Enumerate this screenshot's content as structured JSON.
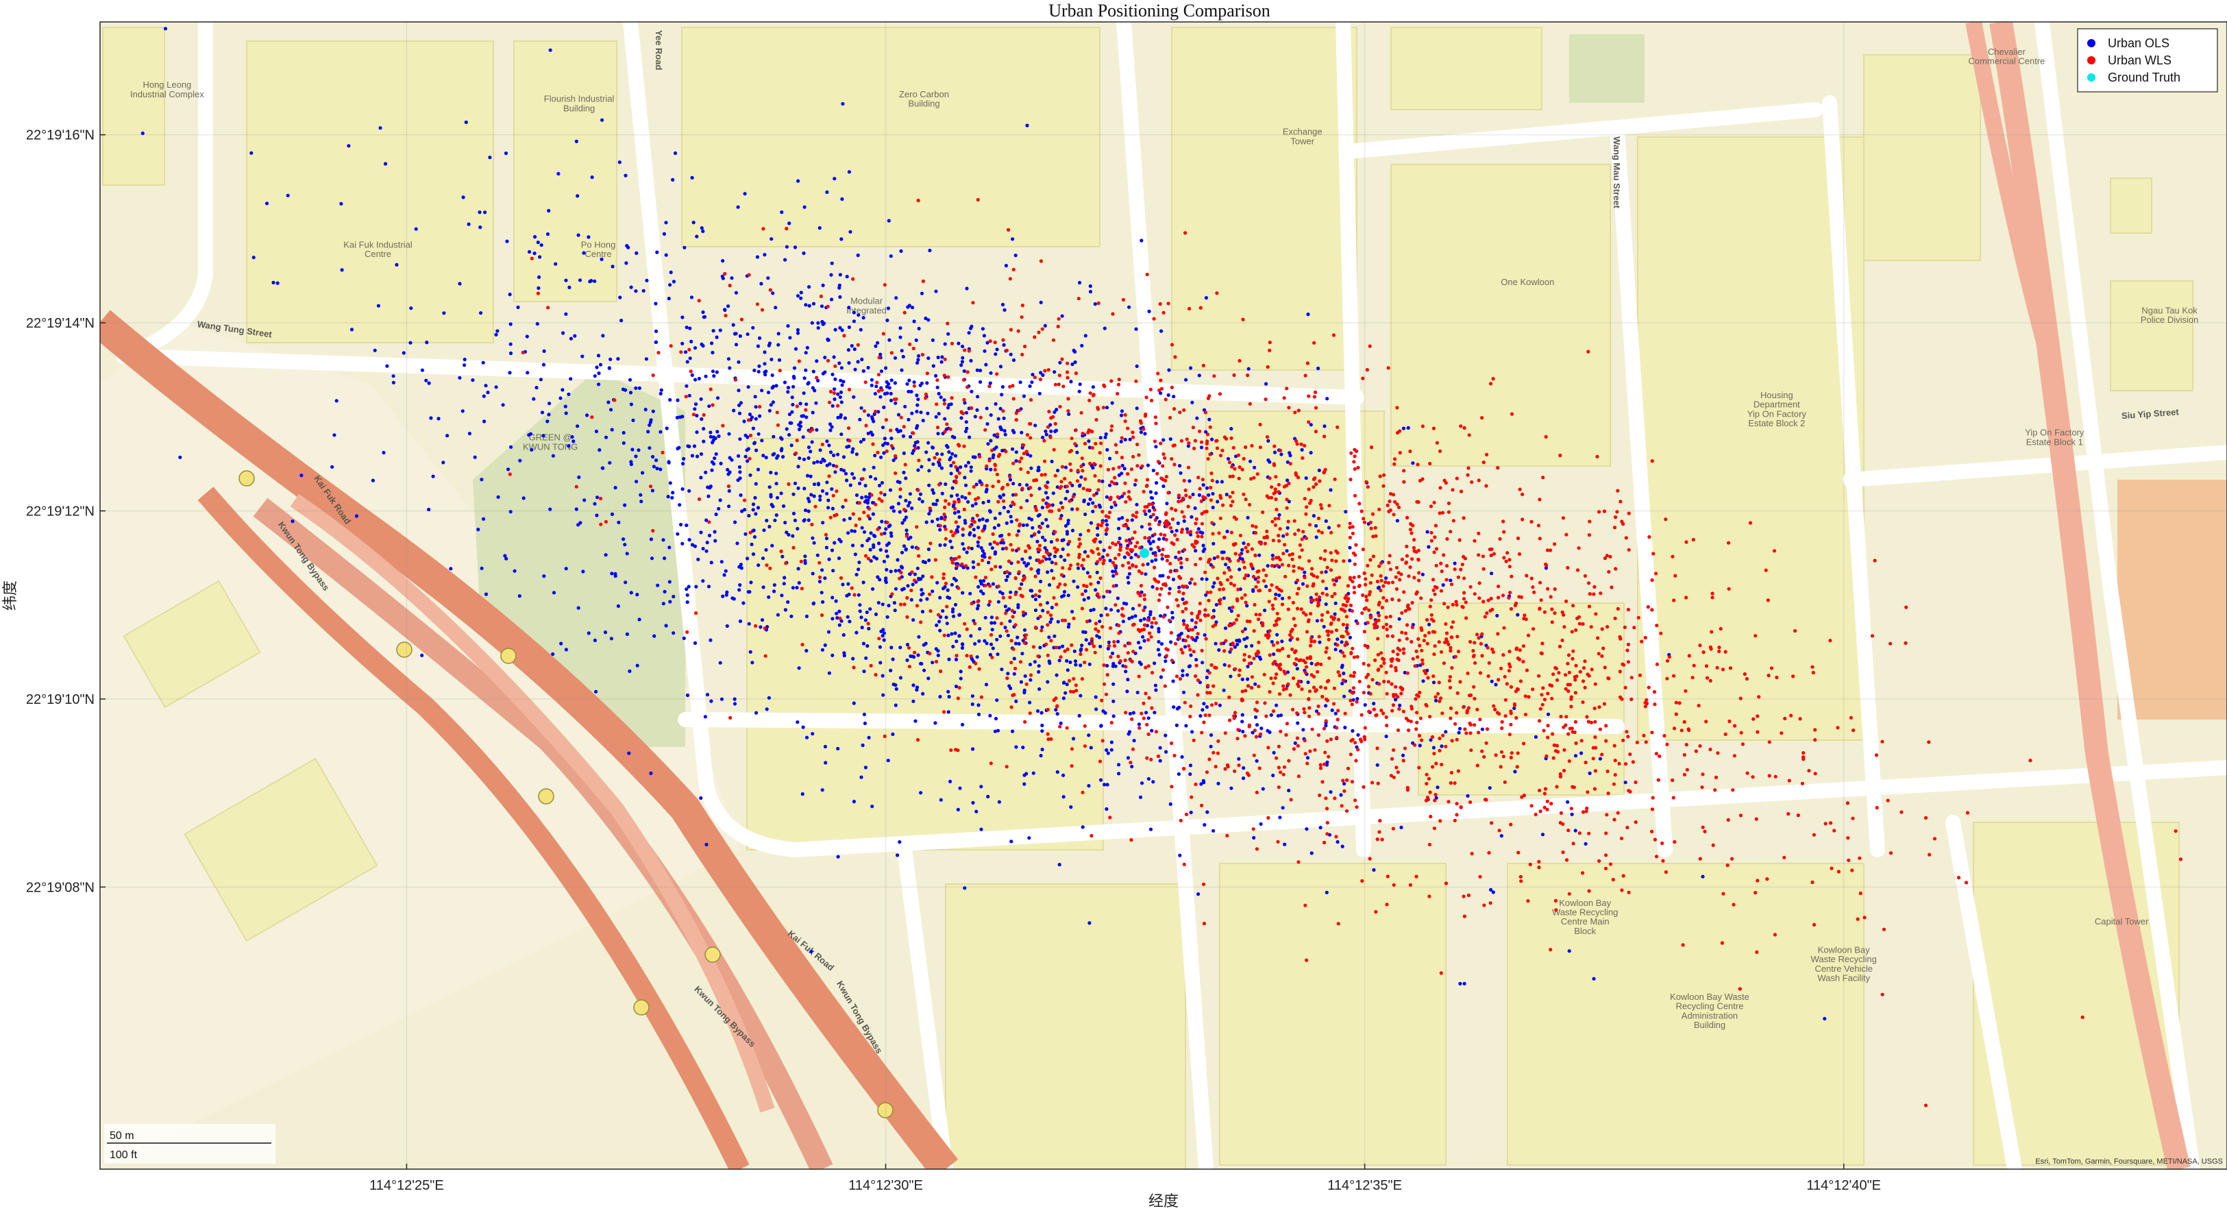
{
  "chart_data": {
    "type": "scatter",
    "title": "Urban Positioning Comparison",
    "xlabel": "经度",
    "ylabel": "纬度",
    "xlim_arcsec": [
      21.8,
      44.0
    ],
    "ylim_arcsec": [
      5.0,
      17.2
    ],
    "x_ticks": [
      {
        "v": 25,
        "label": "114°12'25\"E"
      },
      {
        "v": 30,
        "label": "114°12'30\"E"
      },
      {
        "v": 35,
        "label": "114°12'35\"E"
      },
      {
        "v": 40,
        "label": "114°12'40\"E"
      }
    ],
    "y_ticks": [
      {
        "v": 8,
        "label": "22°19'08\"N"
      },
      {
        "v": 10,
        "label": "22°19'10\"N"
      },
      {
        "v": 12,
        "label": "22°19'12\"N"
      },
      {
        "v": 14,
        "label": "22°19'14\"N"
      },
      {
        "v": 16,
        "label": "22°19'16\"N"
      }
    ],
    "grid": true,
    "legend_position": "top-right",
    "basemap": "street map",
    "series": [
      {
        "name": "Urban OLS",
        "color": "#0000ff",
        "center": [
          30.6,
          11.9
        ],
        "spread": [
          2.4,
          1.25
        ],
        "tilt": -0.32,
        "count": 2600,
        "sample_points": [
          [
            26.5,
            16.9
          ],
          [
            27.9,
            14.8
          ],
          [
            29.5,
            12.6
          ],
          [
            30.9,
            11.6
          ],
          [
            33.1,
            10.3
          ],
          [
            35.4,
            9.4
          ],
          [
            37.2,
            8.6
          ],
          [
            39.8,
            6.6
          ]
        ]
      },
      {
        "name": "Urban WLS",
        "color": "#ff0000",
        "center": [
          34.2,
          11.0
        ],
        "spread": [
          2.6,
          1.1
        ],
        "tilt": -0.3,
        "count": 2800,
        "sample_points": [
          [
            31.7,
            13.5
          ],
          [
            33.4,
            12.4
          ],
          [
            34.4,
            11.2
          ],
          [
            35.8,
            10.5
          ],
          [
            37.4,
            9.9
          ],
          [
            38.5,
            9.5
          ],
          [
            39.9,
            8.6
          ],
          [
            41.2,
            8.1
          ]
        ]
      },
      {
        "name": "Ground Truth",
        "color": "#00e5ee",
        "x": 32.7,
        "y": 11.55
      }
    ]
  },
  "map_labels": {
    "buildings": [
      {
        "t": "Hong Leong",
        "x": 22.5,
        "y": 16.5
      },
      {
        "t": "Industrial Complex",
        "x": 22.5,
        "y": 16.4
      },
      {
        "t": "Flourish Industrial",
        "x": 26.8,
        "y": 16.35
      },
      {
        "t": "Building",
        "x": 26.8,
        "y": 16.25
      },
      {
        "t": "Zero Carbon",
        "x": 30.4,
        "y": 16.4
      },
      {
        "t": "Building",
        "x": 30.4,
        "y": 16.3
      },
      {
        "t": "Exchange",
        "x": 34.35,
        "y": 16.0
      },
      {
        "t": "Tower",
        "x": 34.35,
        "y": 15.9
      },
      {
        "t": "Chevalier",
        "x": 41.7,
        "y": 16.85
      },
      {
        "t": "Commercial Centre",
        "x": 41.7,
        "y": 16.75
      },
      {
        "t": "Kai Fuk Industrial",
        "x": 24.7,
        "y": 14.8
      },
      {
        "t": "Centre",
        "x": 24.7,
        "y": 14.7
      },
      {
        "t": "Po Hong",
        "x": 27.0,
        "y": 14.8
      },
      {
        "t": "Centre",
        "x": 27.0,
        "y": 14.7
      },
      {
        "t": "Modular",
        "x": 29.8,
        "y": 14.2
      },
      {
        "t": "Integrated",
        "x": 29.8,
        "y": 14.1
      },
      {
        "t": "One Kowloon",
        "x": 36.7,
        "y": 14.4
      },
      {
        "t": "Ngau Tau Kok",
        "x": 43.4,
        "y": 14.1
      },
      {
        "t": "Police Division",
        "x": 43.4,
        "y": 14.0
      },
      {
        "t": "Housing",
        "x": 39.3,
        "y": 13.2
      },
      {
        "t": "Department",
        "x": 39.3,
        "y": 13.1
      },
      {
        "t": "Yip On Factory",
        "x": 39.3,
        "y": 13.0
      },
      {
        "t": "Estate Block 2",
        "x": 39.3,
        "y": 12.9
      },
      {
        "t": "Yip On Factory",
        "x": 42.2,
        "y": 12.8
      },
      {
        "t": "Estate Block 1",
        "x": 42.2,
        "y": 12.7
      },
      {
        "t": "GREEN @",
        "x": 26.5,
        "y": 12.75
      },
      {
        "t": "KWUN TONG",
        "x": 26.5,
        "y": 12.65
      },
      {
        "t": "Kowloon Bay",
        "x": 37.3,
        "y": 7.8
      },
      {
        "t": "Waste Recycling",
        "x": 37.3,
        "y": 7.7
      },
      {
        "t": "Centre Main",
        "x": 37.3,
        "y": 7.6
      },
      {
        "t": "Block",
        "x": 37.3,
        "y": 7.5
      },
      {
        "t": "Kowloon Bay",
        "x": 40.0,
        "y": 7.3
      },
      {
        "t": "Waste Recycling",
        "x": 40.0,
        "y": 7.2
      },
      {
        "t": "Centre Vehicle",
        "x": 40.0,
        "y": 7.1
      },
      {
        "t": "Wash Facility",
        "x": 40.0,
        "y": 7.0
      },
      {
        "t": "Kowloon Bay Waste",
        "x": 38.6,
        "y": 6.8
      },
      {
        "t": "Recycling Centre",
        "x": 38.6,
        "y": 6.7
      },
      {
        "t": "Administration",
        "x": 38.6,
        "y": 6.6
      },
      {
        "t": "Building",
        "x": 38.6,
        "y": 6.5
      },
      {
        "t": "Capital Tower",
        "x": 42.9,
        "y": 7.6
      }
    ],
    "roads": [
      {
        "t": "Wang Tung Street",
        "x": 23.2,
        "y": 13.9,
        "rot": 8
      },
      {
        "t": "Wang Mau Street",
        "x": 37.6,
        "y": 15.6,
        "rot": 90
      },
      {
        "t": "Siu Yip Street",
        "x": 43.2,
        "y": 13.0,
        "rot": -4
      },
      {
        "t": "Kai Fuk Road",
        "x": 24.2,
        "y": 12.1,
        "rot": 55
      },
      {
        "t": "Kwun Tong Bypass",
        "x": 23.9,
        "y": 11.5,
        "rot": 55
      },
      {
        "t": "Kai Fuk Road",
        "x": 29.2,
        "y": 7.3,
        "rot": 40
      },
      {
        "t": "Kwun Tong Bypass",
        "x": 28.3,
        "y": 6.6,
        "rot": 45
      },
      {
        "t": "Kwun Tong Bypass",
        "x": 29.7,
        "y": 6.6,
        "rot": 60
      },
      {
        "t": "Yee Road",
        "x": 27.6,
        "y": 16.9,
        "rot": 90
      }
    ]
  },
  "scalebar": {
    "metric": "50 m",
    "imperial": "100 ft"
  },
  "attribution": "Esri, TomTom, Garmin, Foursquare, METI/NASA, USGS"
}
